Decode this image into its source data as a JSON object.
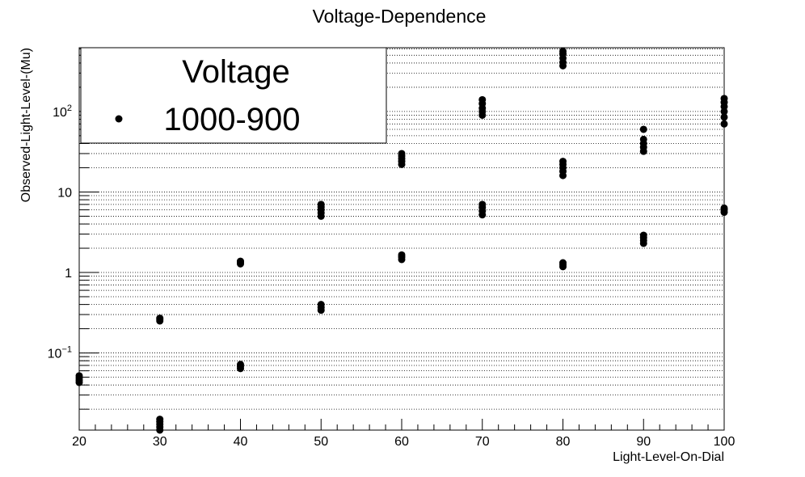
{
  "chart_data": {
    "type": "scatter",
    "title": "Voltage-Dependence",
    "xlabel": "Light-Level-On-Dial",
    "ylabel": "Observed-Light-Level-(Mu)",
    "xlim": [
      20,
      100
    ],
    "ylim": [
      0.011,
      620
    ],
    "yscale": "log",
    "grid": "y",
    "x_ticks": [
      "20",
      "30",
      "40",
      "50",
      "60",
      "70",
      "80",
      "90",
      "100"
    ],
    "y_ticks": [
      {
        "value": 0.1,
        "base": "10",
        "exp": "−1"
      },
      {
        "value": 1,
        "base": "1",
        "exp": ""
      },
      {
        "value": 10,
        "base": "10",
        "exp": ""
      },
      {
        "value": 100,
        "base": "10",
        "exp": "2"
      }
    ],
    "legend": {
      "title": "Voltage",
      "position": "top-left",
      "entries": [
        "1000-900"
      ]
    },
    "series": [
      {
        "name": "1000-900",
        "points": [
          {
            "x": 20,
            "y": [
              0.043,
              0.046,
              0.049,
              0.052
            ]
          },
          {
            "x": 30,
            "y": [
              0.25,
              0.26,
              0.27
            ]
          },
          {
            "x": 30,
            "y": [
              0.011,
              0.012,
              0.013,
              0.014,
              0.015
            ]
          },
          {
            "x": 40,
            "y": [
              1.28,
              1.33,
              1.38
            ]
          },
          {
            "x": 40,
            "y": [
              0.064,
              0.068,
              0.072
            ]
          },
          {
            "x": 50,
            "y": [
              5.0,
              5.5,
              6.0,
              6.5,
              7.0
            ]
          },
          {
            "x": 50,
            "y": [
              0.34,
              0.37,
              0.4
            ]
          },
          {
            "x": 60,
            "y": [
              22,
              24,
              26,
              28,
              30
            ]
          },
          {
            "x": 60,
            "y": [
              1.45,
              1.55,
              1.65
            ]
          },
          {
            "x": 70,
            "y": [
              90,
              100,
              110,
              125,
              140
            ]
          },
          {
            "x": 70,
            "y": [
              5.2,
              5.8,
              6.4,
              7.0
            ]
          },
          {
            "x": 80,
            "y": [
              370,
              410,
              460,
              520,
              560
            ]
          },
          {
            "x": 80,
            "y": [
              16,
              18,
              20,
              22,
              24
            ]
          },
          {
            "x": 80,
            "y": [
              1.18,
              1.25,
              1.32
            ]
          },
          {
            "x": 90,
            "y": [
              32,
              36,
              40,
              45,
              60
            ]
          },
          {
            "x": 90,
            "y": [
              2.3,
              2.5,
              2.7,
              2.9
            ]
          },
          {
            "x": 100,
            "y": [
              70,
              85,
              100,
              115,
              130,
              145
            ]
          },
          {
            "x": 100,
            "y": [
              5.6,
              6.0,
              6.3
            ]
          }
        ]
      }
    ]
  }
}
